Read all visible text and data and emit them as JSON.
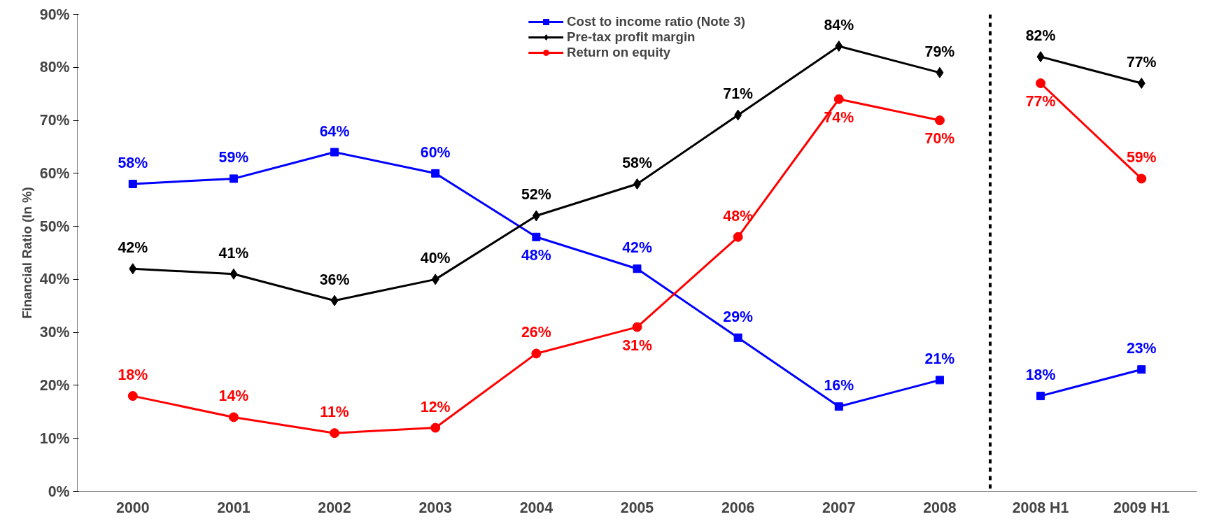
{
  "chart_data": {
    "type": "line",
    "ylabel": "Financial Ratio (In %)",
    "categories": [
      "2000",
      "2001",
      "2002",
      "2003",
      "2004",
      "2005",
      "2006",
      "2007",
      "2008",
      "2008 H1",
      "2009 H1"
    ],
    "series": [
      {
        "name": "Cost to income ratio (Note 3)",
        "color": "#0000ff",
        "marker": "square",
        "values": [
          58,
          59,
          64,
          60,
          48,
          42,
          29,
          16,
          21,
          18,
          23
        ],
        "value_labels": [
          "58%",
          "59%",
          "64%",
          "60%",
          "48%",
          "42%",
          "29%",
          "16%",
          "21%",
          "18%",
          "23%"
        ]
      },
      {
        "name": "Pre-tax profit margin",
        "color": "#000000",
        "marker": "diamond",
        "values": [
          42,
          41,
          36,
          40,
          52,
          58,
          71,
          84,
          79,
          82,
          77
        ],
        "value_labels": [
          "42%",
          "41%",
          "36%",
          "40%",
          "52%",
          "58%",
          "71%",
          "84%",
          "79%",
          "82%",
          "77%"
        ]
      },
      {
        "name": "Return on equity",
        "color": "#ff0000",
        "marker": "circle",
        "values": [
          18,
          14,
          11,
          12,
          26,
          31,
          48,
          74,
          70,
          77,
          59
        ],
        "value_labels": [
          "18%",
          "14%",
          "11%",
          "12%",
          "26%",
          "31%",
          "48%",
          "74%",
          "70%",
          "77%",
          "59%"
        ]
      }
    ],
    "ylim": [
      0,
      90
    ],
    "yticks": [
      {
        "value": 0,
        "label": "0%"
      },
      {
        "value": 10,
        "label": "10%"
      },
      {
        "value": 20,
        "label": "20%"
      },
      {
        "value": 30,
        "label": "30%"
      },
      {
        "value": 40,
        "label": "40%"
      },
      {
        "value": 50,
        "label": "50%"
      },
      {
        "value": 60,
        "label": "60%"
      },
      {
        "value": 70,
        "label": "70%"
      },
      {
        "value": 80,
        "label": "80%"
      },
      {
        "value": 90,
        "label": "90%"
      }
    ],
    "grid": false,
    "legend": "top",
    "line_style": "solid"
  }
}
